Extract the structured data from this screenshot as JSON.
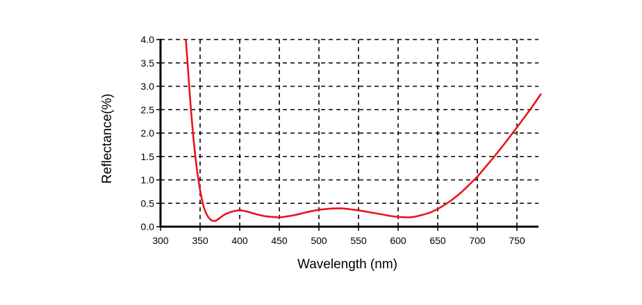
{
  "chart_data": {
    "type": "line",
    "title": "",
    "xlabel": "Wavelength (nm)",
    "ylabel": "Reflectance(%)",
    "xlim": [
      300,
      780
    ],
    "ylim": [
      0,
      4.0
    ],
    "x_ticks": [
      300,
      350,
      400,
      450,
      500,
      550,
      600,
      650,
      700,
      750
    ],
    "x_tick_labels": [
      "300",
      "350",
      "400",
      "450",
      "500",
      "550",
      "600",
      "650",
      "700",
      "750"
    ],
    "y_ticks": [
      0,
      0.5,
      1.0,
      1.5,
      2.0,
      2.5,
      3.0,
      3.5,
      4.0
    ],
    "y_tick_labels": [
      "0.0",
      "0.5",
      "1.0",
      "1.5",
      "2.0",
      "2.5",
      "3.0",
      "3.5",
      "4.0"
    ],
    "grid": true,
    "grid_style": "dashed",
    "legend": "none",
    "series": [
      {
        "color": "#e8141b",
        "x": [
          332,
          335,
          338,
          341,
          344,
          347,
          350,
          353,
          356,
          359,
          362,
          365,
          368,
          372,
          376,
          380,
          385,
          390,
          395,
          400,
          405,
          410,
          420,
          430,
          440,
          450,
          460,
          470,
          480,
          490,
          500,
          510,
          520,
          530,
          540,
          550,
          560,
          570,
          580,
          590,
          600,
          610,
          615,
          620,
          630,
          640,
          650,
          660,
          670,
          680,
          690,
          700,
          710,
          720,
          730,
          740,
          750,
          760,
          770,
          780
        ],
        "y": [
          4.0,
          3.3,
          2.6,
          2.0,
          1.5,
          1.1,
          0.78,
          0.53,
          0.35,
          0.24,
          0.17,
          0.13,
          0.12,
          0.15,
          0.2,
          0.25,
          0.29,
          0.32,
          0.34,
          0.35,
          0.34,
          0.32,
          0.27,
          0.23,
          0.21,
          0.2,
          0.22,
          0.25,
          0.29,
          0.33,
          0.36,
          0.38,
          0.39,
          0.39,
          0.37,
          0.35,
          0.32,
          0.29,
          0.26,
          0.23,
          0.21,
          0.2,
          0.2,
          0.21,
          0.25,
          0.3,
          0.38,
          0.48,
          0.6,
          0.74,
          0.9,
          1.07,
          1.27,
          1.47,
          1.68,
          1.9,
          2.12,
          2.35,
          2.58,
          2.83
        ]
      }
    ]
  }
}
